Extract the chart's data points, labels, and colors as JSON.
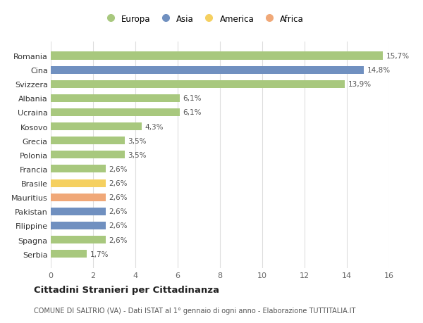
{
  "countries": [
    "Romania",
    "Cina",
    "Svizzera",
    "Albania",
    "Ucraina",
    "Kosovo",
    "Grecia",
    "Polonia",
    "Francia",
    "Brasile",
    "Mauritius",
    "Pakistan",
    "Filippine",
    "Spagna",
    "Serbia"
  ],
  "values": [
    15.7,
    14.8,
    13.9,
    6.1,
    6.1,
    4.3,
    3.5,
    3.5,
    2.6,
    2.6,
    2.6,
    2.6,
    2.6,
    2.6,
    1.7
  ],
  "labels": [
    "15,7%",
    "14,8%",
    "13,9%",
    "6,1%",
    "6,1%",
    "4,3%",
    "3,5%",
    "3,5%",
    "2,6%",
    "2,6%",
    "2,6%",
    "2,6%",
    "2,6%",
    "2,6%",
    "1,7%"
  ],
  "continents": [
    "Europa",
    "Asia",
    "Europa",
    "Europa",
    "Europa",
    "Europa",
    "Europa",
    "Europa",
    "Europa",
    "America",
    "Africa",
    "Asia",
    "Asia",
    "Europa",
    "Europa"
  ],
  "colors": {
    "Europa": "#a8c87e",
    "Asia": "#7090c0",
    "America": "#f5d060",
    "Africa": "#f0a878"
  },
  "legend_order": [
    "Europa",
    "Asia",
    "America",
    "Africa"
  ],
  "xlim": [
    0,
    16
  ],
  "xticks": [
    0,
    2,
    4,
    6,
    8,
    10,
    12,
    14,
    16
  ],
  "title": "Cittadini Stranieri per Cittadinanza",
  "subtitle": "COMUNE DI SALTRIO (VA) - Dati ISTAT al 1° gennaio di ogni anno - Elaborazione TUTTITALIA.IT",
  "bg_color": "#ffffff",
  "bar_height": 0.55
}
